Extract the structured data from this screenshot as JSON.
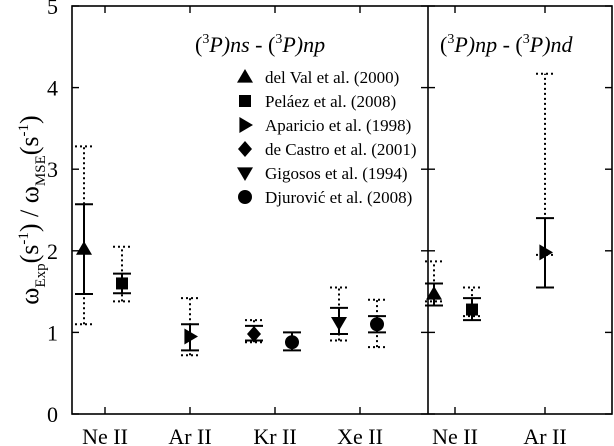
{
  "chart_data": {
    "type": "scatter",
    "ylabel": {
      "main": "ω",
      "sub1": "Exp",
      "mid": "(s",
      "sup1": "-1",
      "mid2": ") / ω",
      "sub2": "MSE",
      "mid3": "(s",
      "sup2": "-1",
      "end": ")"
    },
    "ylim": [
      0,
      5
    ],
    "yticks": [
      "0",
      "1",
      "2",
      "3",
      "4",
      "5"
    ],
    "panels": [
      {
        "title": {
          "p1": "(",
          "s1": "3",
          "p2": "P)",
          "i1": "ns",
          "p3": " - (",
          "s2": "3",
          "p4": "P)",
          "i2": "np"
        },
        "categories": [
          "Ne II",
          "Ar II",
          "Kr II",
          "Xe II"
        ]
      },
      {
        "title": {
          "p1": "(",
          "s1": "3",
          "p2": "P)",
          "i1": "np",
          "p3": " - (",
          "s2": "3",
          "p4": "P)",
          "i2": "nd"
        },
        "categories": [
          "Ne II",
          "Ar II"
        ]
      }
    ],
    "series": [
      {
        "name": "del Val et al. (2000)",
        "marker": "triangle-up"
      },
      {
        "name": "Peláez et al. (2008)",
        "marker": "square"
      },
      {
        "name": "Aparicio et al. (1998)",
        "marker": "triangle-right"
      },
      {
        "name": "de Castro et al. (2001)",
        "marker": "diamond"
      },
      {
        "name": "Gigosos et al. (1994)",
        "marker": "triangle-down"
      },
      {
        "name": "Djurović et al. (2008)",
        "marker": "circle"
      }
    ],
    "points": [
      {
        "panel": 0,
        "category": "Ne II",
        "series": 0,
        "y": 2.02,
        "err": [
          1.47,
          2.57
        ],
        "dotted": [
          1.1,
          3.28
        ]
      },
      {
        "panel": 0,
        "category": "Ne II",
        "series": 1,
        "y": 1.6,
        "err": [
          1.48,
          1.72
        ],
        "dotted": [
          1.38,
          2.05
        ]
      },
      {
        "panel": 0,
        "category": "Ar II",
        "series": 2,
        "y": 0.95,
        "err": [
          0.78,
          1.1
        ],
        "dotted": [
          0.72,
          1.42
        ]
      },
      {
        "panel": 0,
        "category": "Kr II",
        "series": 3,
        "y": 0.98,
        "err": [
          0.9,
          1.08
        ],
        "dotted": [
          0.88,
          1.15
        ]
      },
      {
        "panel": 0,
        "category": "Kr II",
        "series": 5,
        "y": 0.88,
        "err": [
          0.78,
          1.0
        ],
        "dotted": null
      },
      {
        "panel": 0,
        "category": "Xe II",
        "series": 4,
        "y": 1.12,
        "err": [
          0.98,
          1.3
        ],
        "dotted": [
          0.9,
          1.55
        ]
      },
      {
        "panel": 0,
        "category": "Xe II",
        "series": 5,
        "y": 1.1,
        "err": [
          1.0,
          1.2
        ],
        "dotted": [
          0.82,
          1.4
        ]
      },
      {
        "panel": 1,
        "category": "Ne II",
        "series": 0,
        "y": 1.47,
        "err": [
          1.33,
          1.6
        ],
        "dotted": [
          1.38,
          1.87
        ]
      },
      {
        "panel": 1,
        "category": "Ne II",
        "series": 1,
        "y": 1.28,
        "err": [
          1.15,
          1.42
        ],
        "dotted": [
          1.2,
          1.55
        ]
      },
      {
        "panel": 1,
        "category": "Ar II",
        "series": 2,
        "y": 1.98,
        "err": [
          1.55,
          2.4
        ],
        "dotted": [
          1.95,
          4.17
        ]
      }
    ]
  }
}
